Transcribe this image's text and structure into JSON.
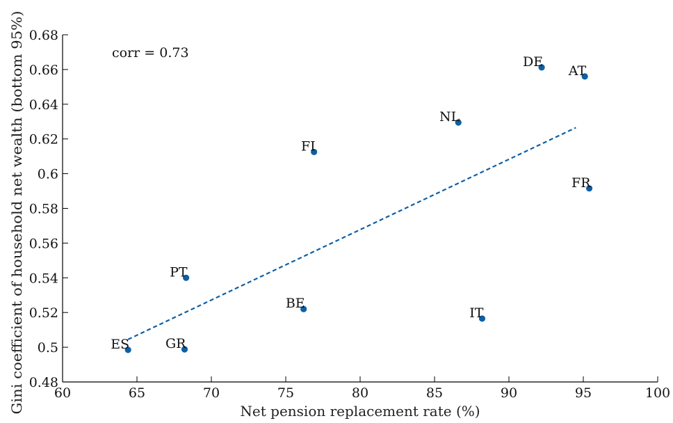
{
  "chart_data": {
    "type": "scatter",
    "xlabel": "Net pension replacement rate (%)",
    "ylabel": "Gini coefficient of household net wealth (bottom 95%)",
    "xlim": [
      60,
      100
    ],
    "ylim": [
      0.48,
      0.68
    ],
    "xticks": [
      60,
      65,
      70,
      75,
      80,
      85,
      90,
      95,
      100
    ],
    "yticks": [
      0.48,
      0.5,
      0.52,
      0.54,
      0.56,
      0.58,
      0.6,
      0.62,
      0.64,
      0.66,
      0.68
    ],
    "xtick_labels": [
      "60",
      "65",
      "70",
      "75",
      "80",
      "85",
      "90",
      "95",
      "100"
    ],
    "ytick_labels": [
      "0.48",
      "0.5",
      "0.52",
      "0.54",
      "0.56",
      "0.58",
      "0.6",
      "0.62",
      "0.64",
      "0.66",
      "0.68"
    ],
    "annotation": "corr = 0.73",
    "points": [
      {
        "label": "ES",
        "x": 64.4,
        "y": 0.4985
      },
      {
        "label": "GR",
        "x": 68.2,
        "y": 0.4988
      },
      {
        "label": "PT",
        "x": 68.3,
        "y": 0.54
      },
      {
        "label": "BE",
        "x": 76.2,
        "y": 0.522
      },
      {
        "label": "FI",
        "x": 76.9,
        "y": 0.6125
      },
      {
        "label": "IT",
        "x": 88.2,
        "y": 0.5165
      },
      {
        "label": "NL",
        "x": 86.6,
        "y": 0.6295
      },
      {
        "label": "DE",
        "x": 92.2,
        "y": 0.6612
      },
      {
        "label": "AT",
        "x": 95.1,
        "y": 0.656
      },
      {
        "label": "FR",
        "x": 95.4,
        "y": 0.5915
      }
    ],
    "trendline": {
      "x": [
        64.4,
        94.5
      ],
      "y": [
        0.5045,
        0.6265
      ]
    },
    "grid": false,
    "colors": {
      "marker": "#0d5fa6",
      "trendline": "#0d5fa6",
      "axis": "#000000"
    }
  }
}
